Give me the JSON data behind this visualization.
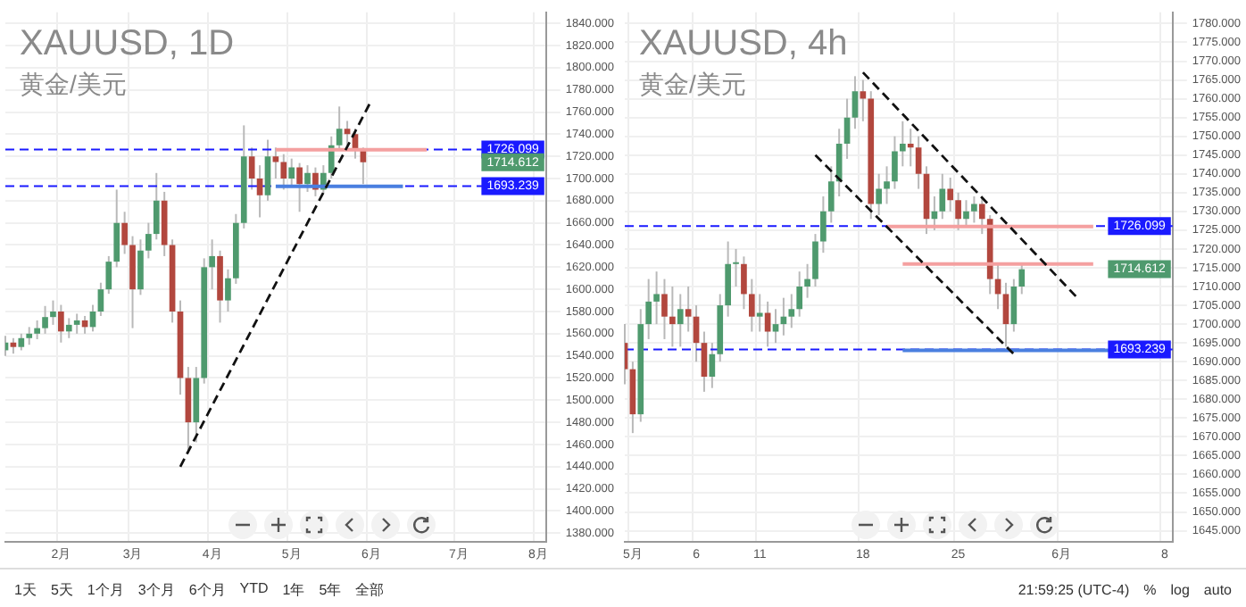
{
  "chart_data": [
    {
      "type": "candlestick",
      "title": "XAUUSD, 1D",
      "subtitle": "黄金/美元",
      "grid": true,
      "colors": [
        "#4f9a6e",
        "#b2473e",
        "#4f9a6e",
        "#4f9a6e",
        "#4f9a6e",
        "#4f9a6e",
        "#4f9a6e",
        "#b2473e",
        "#4f9a6e",
        "#4f9a6e",
        "#b2473e",
        "#4f9a6e",
        "#4f9a6e",
        "#4f9a6e",
        "#4f9a6e",
        "#b2473e",
        "#b2473e",
        "#4f9a6e",
        "#4f9a6e",
        "#4f9a6e",
        "#b2473e",
        "#b2473e",
        "#b2473e",
        "#b2473e",
        "#4f9a6e",
        "#4f9a6e",
        "#4f9a6e",
        "#b2473e",
        "#4f9a6e",
        "#4f9a6e",
        "#4f9a6e",
        "#b2473e",
        "#b2473e",
        "#4f9a6e",
        "#b2473e",
        "#b2473e",
        "#4f9a6e",
        "#b2473e",
        "#4f9a6e",
        "#b2473e",
        "#4f9a6e",
        "#4f9a6e",
        "#4f9a6e",
        "#b2473e",
        "#b2473e",
        "#b2473e",
        null,
        null,
        null,
        null,
        null,
        null,
        null,
        null,
        null,
        null,
        null,
        null,
        null,
        null,
        null,
        null,
        null,
        null,
        null,
        null,
        null,
        null,
        null
      ],
      "categories": [
        null,
        null,
        null,
        null,
        null,
        null,
        null,
        "2月",
        null,
        null,
        null,
        null,
        null,
        null,
        null,
        null,
        "3月",
        null,
        null,
        null,
        null,
        null,
        null,
        null,
        null,
        null,
        "4月",
        null,
        null,
        null,
        null,
        null,
        null,
        null,
        null,
        null,
        "5月",
        null,
        null,
        null,
        null,
        null,
        null,
        null,
        null,
        null,
        "6月",
        null,
        null,
        null,
        null,
        null,
        null,
        null,
        null,
        null,
        null,
        "7月",
        null,
        null,
        null,
        null,
        null,
        null,
        null,
        null,
        null,
        "8月",
        null
      ],
      "ohlc": [
        [
          1545,
          1558,
          1540,
          1552
        ],
        [
          1552,
          1556,
          1542,
          1548
        ],
        [
          1548,
          1560,
          1545,
          1556
        ],
        [
          1556,
          1566,
          1550,
          1560
        ],
        [
          1560,
          1572,
          1555,
          1565
        ],
        [
          1565,
          1585,
          1560,
          1575
        ],
        [
          1575,
          1590,
          1568,
          1580
        ],
        [
          1580,
          1586,
          1552,
          1562
        ],
        [
          1562,
          1574,
          1556,
          1568
        ],
        [
          1568,
          1578,
          1560,
          1572
        ],
        [
          1572,
          1576,
          1560,
          1566
        ],
        [
          1566,
          1586,
          1562,
          1580
        ],
        [
          1580,
          1606,
          1576,
          1600
        ],
        [
          1600,
          1630,
          1596,
          1625
        ],
        [
          1625,
          1690,
          1620,
          1660
        ],
        [
          1660,
          1670,
          1632,
          1640
        ],
        [
          1640,
          1648,
          1565,
          1600
        ],
        [
          1600,
          1645,
          1595,
          1635
        ],
        [
          1635,
          1660,
          1628,
          1650
        ],
        [
          1650,
          1705,
          1645,
          1680
        ],
        [
          1680,
          1688,
          1630,
          1640
        ],
        [
          1640,
          1645,
          1570,
          1580
        ],
        [
          1580,
          1590,
          1505,
          1520
        ],
        [
          1520,
          1530,
          1452,
          1480
        ],
        [
          1480,
          1530,
          1462,
          1520
        ],
        [
          1520,
          1628,
          1515,
          1620
        ],
        [
          1620,
          1645,
          1600,
          1630
        ],
        [
          1630,
          1635,
          1570,
          1590
        ],
        [
          1590,
          1618,
          1580,
          1610
        ],
        [
          1610,
          1668,
          1605,
          1660
        ],
        [
          1660,
          1748,
          1655,
          1720
        ],
        [
          1720,
          1728,
          1690,
          1700
        ],
        [
          1700,
          1712,
          1665,
          1685
        ],
        [
          1685,
          1735,
          1680,
          1720
        ],
        [
          1720,
          1728,
          1700,
          1715
        ],
        [
          1715,
          1722,
          1690,
          1700
        ],
        [
          1700,
          1718,
          1692,
          1710
        ],
        [
          1710,
          1714,
          1670,
          1695
        ],
        [
          1695,
          1712,
          1688,
          1705
        ],
        [
          1705,
          1710,
          1684,
          1690
        ],
        [
          1690,
          1712,
          1686,
          1705
        ],
        [
          1705,
          1738,
          1700,
          1730
        ],
        [
          1730,
          1765,
          1725,
          1745
        ],
        [
          1745,
          1752,
          1730,
          1740
        ],
        [
          1740,
          1745,
          1718,
          1725
        ],
        [
          1725,
          1728,
          1695,
          1714.612
        ],
        null,
        null,
        null,
        null,
        null,
        null,
        null,
        null,
        null,
        null,
        null,
        null,
        null,
        null,
        null,
        null,
        null,
        null,
        null,
        null,
        null,
        null,
        null
      ],
      "series": [
        {
          "type": "line",
          "line_style": "dashed",
          "color": "#111111",
          "values": [
            null,
            null,
            null,
            null,
            null,
            null,
            null,
            null,
            null,
            null,
            null,
            null,
            null,
            null,
            null,
            null,
            null,
            null,
            null,
            null,
            null,
            null,
            1440,
            null,
            null,
            null,
            null,
            null,
            null,
            null,
            null,
            null,
            null,
            null,
            null,
            null,
            null,
            null,
            null,
            null,
            null,
            null,
            null,
            null,
            null,
            null,
            1770,
            null,
            null,
            null,
            null,
            null,
            null,
            null,
            null,
            null,
            null,
            null,
            null,
            null,
            null,
            null,
            null,
            null,
            null,
            null,
            null,
            null,
            null
          ]
        },
        {
          "type": "line",
          "line_style": "solid",
          "color": "#f4a0a0",
          "values": [
            null,
            null,
            null,
            null,
            null,
            null,
            null,
            null,
            null,
            null,
            null,
            null,
            null,
            null,
            null,
            null,
            null,
            null,
            null,
            null,
            null,
            null,
            null,
            null,
            null,
            null,
            null,
            null,
            null,
            null,
            null,
            null,
            null,
            null,
            1726,
            null,
            null,
            null,
            null,
            null,
            null,
            null,
            null,
            null,
            null,
            null,
            null,
            null,
            null,
            null,
            null,
            null,
            null,
            1726,
            null,
            null,
            null,
            null,
            null,
            null,
            null,
            null,
            null,
            null,
            null,
            null,
            null,
            null,
            null
          ]
        },
        {
          "type": "line",
          "line_style": "solid",
          "color": "#4a7fe0",
          "values": [
            null,
            null,
            null,
            null,
            null,
            null,
            null,
            null,
            null,
            null,
            null,
            null,
            null,
            null,
            null,
            null,
            null,
            null,
            null,
            null,
            null,
            null,
            null,
            null,
            null,
            null,
            null,
            null,
            null,
            null,
            null,
            null,
            null,
            null,
            1693,
            null,
            null,
            null,
            null,
            null,
            null,
            null,
            null,
            null,
            null,
            null,
            null,
            null,
            null,
            null,
            1693,
            null,
            null,
            null,
            null,
            null,
            null,
            null,
            null,
            null,
            null,
            null,
            null,
            null,
            null,
            null,
            null,
            null,
            null
          ]
        }
      ],
      "ylim": [
        1372,
        1850
      ],
      "yticks": [
        {
          "value": 1380,
          "label": "1380.000"
        },
        {
          "value": 1400,
          "label": "1400.000"
        },
        {
          "value": 1420,
          "label": "1420.000"
        },
        {
          "value": 1440,
          "label": "1440.000"
        },
        {
          "value": 1460,
          "label": "1460.000"
        },
        {
          "value": 1480,
          "label": "1480.000"
        },
        {
          "value": 1500,
          "label": "1500.000"
        },
        {
          "value": 1520,
          "label": "1520.000"
        },
        {
          "value": 1540,
          "label": "1540.000"
        },
        {
          "value": 1560,
          "label": "1560.000"
        },
        {
          "value": 1580,
          "label": "1580.000"
        },
        {
          "value": 1600,
          "label": "1600.000"
        },
        {
          "value": 1620,
          "label": "1620.000"
        },
        {
          "value": 1640,
          "label": "1640.000"
        },
        {
          "value": 1660,
          "label": "1660.000"
        },
        {
          "value": 1680,
          "label": "1680.000"
        },
        {
          "value": 1700,
          "label": "1700.000"
        },
        {
          "value": 1720,
          "label": "1720.000"
        },
        {
          "value": 1740,
          "label": "1740.000"
        },
        {
          "value": 1760,
          "label": "1760.000"
        },
        {
          "value": 1780,
          "label": "1780.000"
        },
        {
          "value": 1800,
          "label": "1800.000"
        },
        {
          "value": 1820,
          "label": "1820.000"
        },
        {
          "value": 1840,
          "label": "1840.000"
        }
      ],
      "ref_lines": [
        {
          "axis": "y",
          "value": 1726.099,
          "label": "1726.099",
          "color": "#1a1aff",
          "line_style": "dashed"
        },
        {
          "axis": "y",
          "value": 1693.239,
          "label": "1693.239",
          "color": "#1a1aff",
          "line_style": "dashed"
        }
      ],
      "annotations": [
        "1714.612",
        "1天",
        "5天",
        "1个月",
        "3个月",
        "6个月",
        "YTD",
        "1年",
        "5年",
        "全部"
      ]
    },
    {
      "type": "candlestick",
      "title": "XAUUSD, 4h",
      "subtitle": "黄金/美元",
      "grid": true,
      "colors": [
        "#b2473e",
        "#b2473e",
        "#4f9a6e",
        "#4f9a6e",
        "#4f9a6e",
        "#b2473e",
        "#b2473e",
        "#4f9a6e",
        "#b2473e",
        "#b2473e",
        "#b2473e",
        "#4f9a6e",
        "#4f9a6e",
        "#4f9a6e",
        "#4f9a6e",
        "#b2473e",
        "#b2473e",
        "#4f9a6e",
        "#b2473e",
        "#4f9a6e",
        "#4f9a6e",
        "#4f9a6e",
        "#4f9a6e",
        "#4f9a6e",
        "#4f9a6e",
        "#4f9a6e",
        "#4f9a6e",
        "#4f9a6e",
        "#4f9a6e",
        "#4f9a6e",
        "#b2473e",
        "#b2473e",
        "#4f9a6e",
        "#4f9a6e",
        "#4f9a6e",
        "#4f9a6e",
        "#b2473e",
        "#b2473e",
        "#b2473e",
        "#4f9a6e",
        "#4f9a6e",
        "#b2473e",
        "#b2473e",
        "#4f9a6e",
        "#4f9a6e",
        "#b2473e",
        "#b2473e",
        "#b2473e",
        "#b2473e",
        "#4f9a6e",
        "#4f9a6e",
        null,
        null,
        null,
        null,
        null,
        null,
        null,
        null,
        null,
        null,
        null,
        null,
        null,
        null,
        null,
        null,
        null,
        null,
        null
      ],
      "categories": [
        null,
        "5月",
        null,
        null,
        null,
        null,
        null,
        null,
        null,
        "6",
        null,
        null,
        null,
        null,
        null,
        null,
        null,
        "11",
        null,
        null,
        null,
        null,
        null,
        null,
        null,
        null,
        null,
        null,
        null,
        null,
        "18",
        null,
        null,
        null,
        null,
        null,
        null,
        null,
        null,
        null,
        null,
        null,
        "25",
        null,
        null,
        null,
        null,
        null,
        null,
        null,
        null,
        null,
        null,
        null,
        null,
        "6月",
        null,
        null,
        null,
        null,
        null,
        null,
        null,
        null,
        null,
        null,
        null,
        null,
        "8",
        null
      ],
      "ohlc": [
        [
          1695,
          1700,
          1684,
          1688
        ],
        [
          1688,
          1690,
          1671,
          1676
        ],
        [
          1676,
          1704,
          1674,
          1700
        ],
        [
          1700,
          1712,
          1696,
          1706
        ],
        [
          1706,
          1714,
          1700,
          1708
        ],
        [
          1708,
          1712,
          1696,
          1702
        ],
        [
          1702,
          1710,
          1694,
          1700
        ],
        [
          1700,
          1708,
          1694,
          1704
        ],
        [
          1704,
          1710,
          1698,
          1702
        ],
        [
          1702,
          1705,
          1690,
          1695
        ],
        [
          1695,
          1698,
          1682,
          1686
        ],
        [
          1686,
          1695,
          1683,
          1692
        ],
        [
          1692,
          1708,
          1690,
          1705
        ],
        [
          1705,
          1722,
          1702,
          1716
        ],
        [
          1716,
          1720,
          1710,
          1716
        ],
        [
          1716,
          1718,
          1704,
          1708
        ],
        [
          1708,
          1712,
          1698,
          1702
        ],
        [
          1702,
          1708,
          1698,
          1703
        ],
        [
          1703,
          1706,
          1694,
          1698
        ],
        [
          1698,
          1704,
          1695,
          1700
        ],
        [
          1700,
          1707,
          1697,
          1702
        ],
        [
          1702,
          1708,
          1699,
          1704
        ],
        [
          1704,
          1714,
          1702,
          1710
        ],
        [
          1710,
          1716,
          1707,
          1712
        ],
        [
          1712,
          1724,
          1710,
          1722
        ],
        [
          1722,
          1734,
          1719,
          1730
        ],
        [
          1730,
          1742,
          1727,
          1738
        ],
        [
          1738,
          1752,
          1734,
          1748
        ],
        [
          1748,
          1760,
          1744,
          1755
        ],
        [
          1755,
          1766,
          1752,
          1762
        ],
        [
          1762,
          1765,
          1754,
          1760
        ],
        [
          1760,
          1762,
          1728,
          1732
        ],
        [
          1732,
          1740,
          1729,
          1736
        ],
        [
          1736,
          1742,
          1732,
          1738
        ],
        [
          1738,
          1750,
          1736,
          1746
        ],
        [
          1746,
          1754,
          1742,
          1748
        ],
        [
          1748,
          1752,
          1742,
          1747
        ],
        [
          1747,
          1750,
          1736,
          1740
        ],
        [
          1740,
          1742,
          1724,
          1728
        ],
        [
          1728,
          1734,
          1725,
          1730
        ],
        [
          1730,
          1740,
          1728,
          1736
        ],
        [
          1736,
          1739,
          1730,
          1733
        ],
        [
          1733,
          1735,
          1725,
          1728
        ],
        [
          1728,
          1733,
          1726,
          1730
        ],
        [
          1730,
          1734,
          1727,
          1732
        ],
        [
          1732,
          1734,
          1724,
          1728
        ],
        [
          1728,
          1729,
          1708,
          1712
        ],
        [
          1712,
          1716,
          1704,
          1708
        ],
        [
          1708,
          1711,
          1694,
          1700
        ],
        [
          1700,
          1712,
          1698,
          1710
        ],
        [
          1710,
          1716,
          1708,
          1714.612
        ],
        null,
        null,
        null,
        null,
        null,
        null,
        null,
        null,
        null,
        null,
        null,
        null,
        null,
        null,
        null,
        null,
        null,
        null,
        null
      ],
      "series": [
        {
          "type": "line",
          "line_style": "dashed",
          "color": "#111111",
          "values": [
            null,
            null,
            null,
            null,
            null,
            null,
            null,
            null,
            null,
            null,
            null,
            null,
            null,
            null,
            null,
            null,
            null,
            null,
            null,
            null,
            null,
            null,
            null,
            null,
            null,
            null,
            null,
            null,
            null,
            null,
            1767,
            null,
            null,
            null,
            null,
            null,
            null,
            null,
            null,
            null,
            null,
            null,
            null,
            null,
            null,
            null,
            null,
            null,
            null,
            null,
            null,
            null,
            null,
            null,
            null,
            null,
            null,
            1707,
            null,
            null,
            null,
            null,
            null,
            null,
            null,
            null,
            null,
            null,
            null,
            null
          ]
        },
        {
          "type": "line",
          "line_style": "dashed",
          "color": "#111111",
          "values": [
            null,
            null,
            null,
            null,
            null,
            null,
            null,
            null,
            null,
            null,
            null,
            null,
            null,
            null,
            null,
            null,
            null,
            null,
            null,
            null,
            null,
            null,
            null,
            null,
            1745,
            null,
            null,
            null,
            null,
            null,
            null,
            null,
            null,
            null,
            null,
            null,
            null,
            null,
            null,
            null,
            null,
            null,
            null,
            null,
            null,
            null,
            null,
            null,
            null,
            1692,
            null,
            null,
            null,
            null,
            null,
            null,
            null,
            null,
            null,
            null,
            null,
            null,
            null,
            null,
            null,
            null,
            null,
            null,
            null,
            null
          ]
        },
        {
          "type": "line",
          "line_style": "solid",
          "color": "#f4a0a0",
          "values": [
            null,
            null,
            null,
            null,
            null,
            null,
            null,
            null,
            null,
            null,
            null,
            null,
            null,
            null,
            null,
            null,
            null,
            null,
            null,
            null,
            null,
            null,
            null,
            null,
            null,
            null,
            null,
            null,
            null,
            null,
            null,
            null,
            null,
            1726,
            null,
            null,
            null,
            null,
            null,
            null,
            null,
            null,
            null,
            null,
            null,
            null,
            null,
            null,
            null,
            null,
            null,
            null,
            null,
            null,
            null,
            null,
            null,
            null,
            null,
            1726,
            null,
            null,
            null,
            null,
            null,
            null,
            null,
            null,
            null,
            null
          ]
        },
        {
          "type": "line",
          "line_style": "solid",
          "color": "#f4a0a0",
          "values": [
            null,
            null,
            null,
            null,
            null,
            null,
            null,
            null,
            null,
            null,
            null,
            null,
            null,
            null,
            null,
            null,
            null,
            null,
            null,
            null,
            null,
            null,
            null,
            null,
            null,
            null,
            null,
            null,
            null,
            null,
            null,
            null,
            null,
            null,
            null,
            1716,
            null,
            null,
            null,
            null,
            null,
            null,
            null,
            null,
            null,
            null,
            null,
            null,
            null,
            null,
            null,
            null,
            null,
            null,
            null,
            null,
            null,
            null,
            null,
            1716,
            null,
            null,
            null,
            null,
            null,
            null,
            null,
            null,
            null,
            null
          ]
        },
        {
          "type": "line",
          "line_style": "solid",
          "color": "#4a7fe0",
          "values": [
            null,
            null,
            null,
            null,
            null,
            null,
            null,
            null,
            null,
            null,
            null,
            null,
            null,
            null,
            null,
            null,
            null,
            null,
            null,
            null,
            null,
            null,
            null,
            null,
            null,
            null,
            null,
            null,
            null,
            null,
            null,
            null,
            null,
            null,
            null,
            1693,
            null,
            null,
            null,
            null,
            null,
            null,
            null,
            null,
            null,
            null,
            null,
            null,
            null,
            null,
            null,
            null,
            null,
            null,
            null,
            null,
            null,
            null,
            null,
            null,
            null,
            null,
            1693,
            null,
            null,
            null,
            null,
            null,
            null,
            null
          ]
        }
      ],
      "ylim": [
        1642,
        1783
      ],
      "yticks": [
        {
          "value": 1645,
          "label": "1645.000"
        },
        {
          "value": 1650,
          "label": "1650.000"
        },
        {
          "value": 1655,
          "label": "1655.000"
        },
        {
          "value": 1660,
          "label": "1660.000"
        },
        {
          "value": 1665,
          "label": "1665.000"
        },
        {
          "value": 1670,
          "label": "1670.000"
        },
        {
          "value": 1675,
          "label": "1675.000"
        },
        {
          "value": 1680,
          "label": "1680.000"
        },
        {
          "value": 1685,
          "label": "1685.000"
        },
        {
          "value": 1690,
          "label": "1690.000"
        },
        {
          "value": 1695,
          "label": "1695.000"
        },
        {
          "value": 1700,
          "label": "1700.000"
        },
        {
          "value": 1705,
          "label": "1705.000"
        },
        {
          "value": 1710,
          "label": "1710.000"
        },
        {
          "value": 1715,
          "label": "1715.000"
        },
        {
          "value": 1720,
          "label": "1720.000"
        },
        {
          "value": 1725,
          "label": "1725.000"
        },
        {
          "value": 1730,
          "label": "1730.000"
        },
        {
          "value": 1735,
          "label": "1735.000"
        },
        {
          "value": 1740,
          "label": "1740.000"
        },
        {
          "value": 1745,
          "label": "1745.000"
        },
        {
          "value": 1750,
          "label": "1750.000"
        },
        {
          "value": 1755,
          "label": "1755.000"
        },
        {
          "value": 1760,
          "label": "1760.000"
        },
        {
          "value": 1765,
          "label": "1765.000"
        },
        {
          "value": 1770,
          "label": "1770.000"
        },
        {
          "value": 1775,
          "label": "1775.000"
        },
        {
          "value": 1780,
          "label": "1780.000"
        }
      ],
      "ref_lines": [
        {
          "axis": "y",
          "value": 1726.099,
          "label": "1726.099",
          "color": "#1a1aff",
          "line_style": "dashed"
        },
        {
          "axis": "y",
          "value": 1693.239,
          "label": "1693.239",
          "color": "#1a1aff",
          "line_style": "dashed"
        }
      ],
      "annotations": [
        "1714.612",
        "21:59:25 (UTC-4)",
        "%",
        "log",
        "auto"
      ]
    }
  ]
}
